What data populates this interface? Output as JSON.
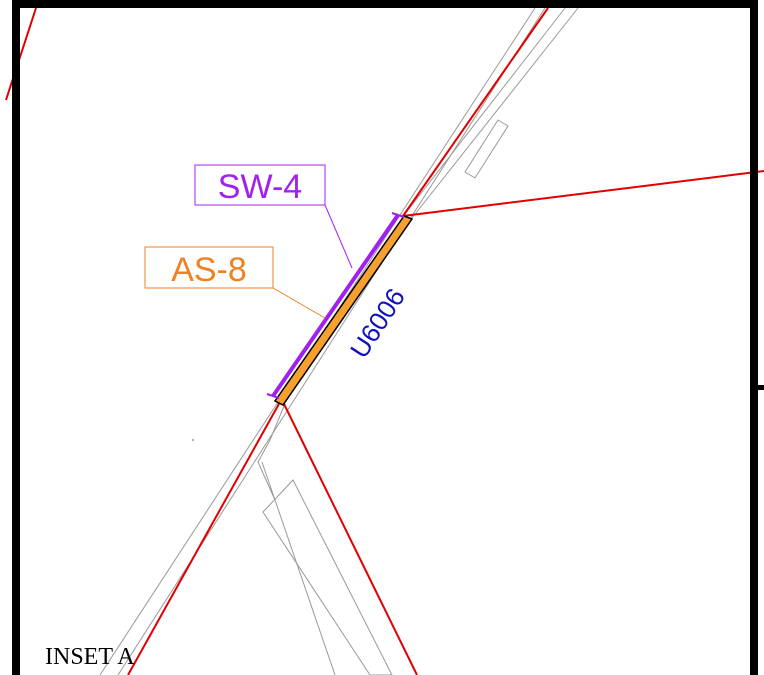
{
  "labels": {
    "sw": "SW-4",
    "as": "AS-8",
    "road": "U6006",
    "inset": "INSET A"
  }
}
